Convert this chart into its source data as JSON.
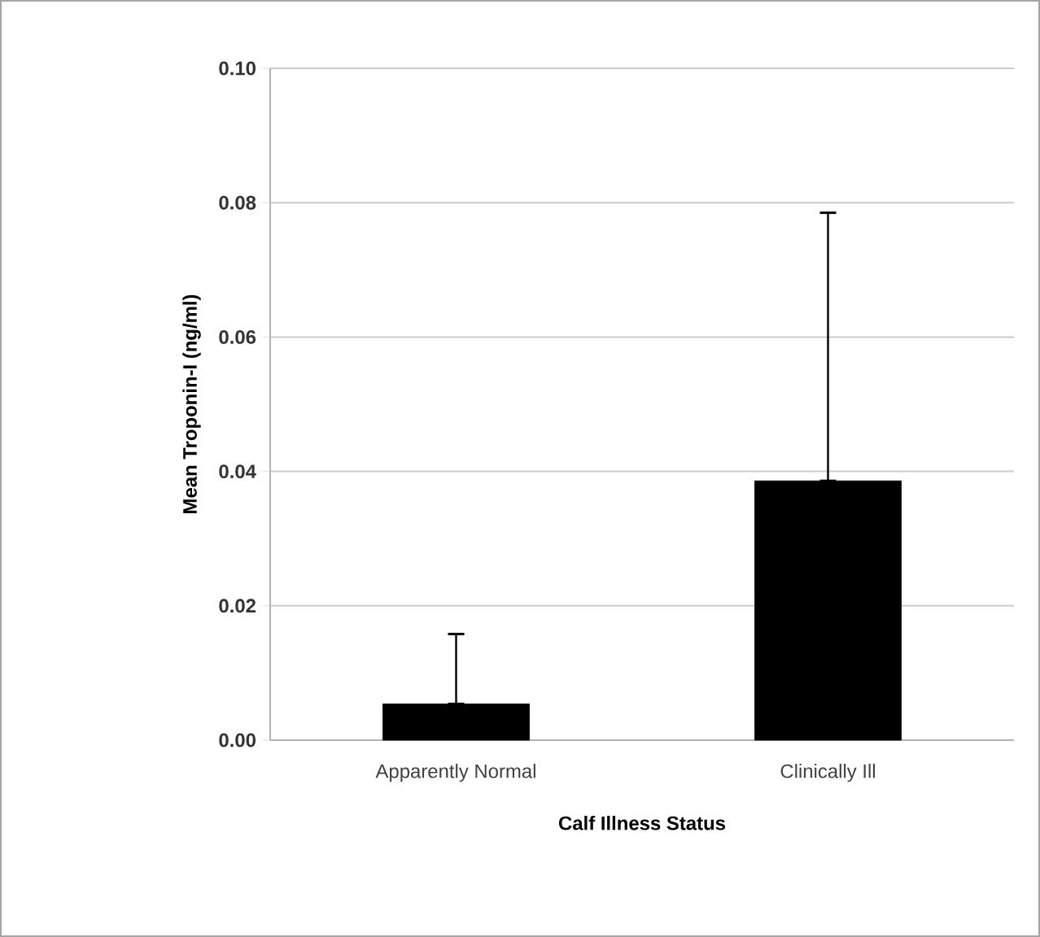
{
  "chart_data": {
    "type": "bar",
    "xlabel": "Calf Illness Status",
    "ylabel": "Mean Troponin-I (ng/ml)",
    "categories": [
      "Apparently Normal",
      "Clinically Ill"
    ],
    "values": [
      0.0054,
      0.0386
    ],
    "color": "#000000",
    "errors": [
      [
        0.0054,
        0.0158
      ],
      [
        0.0386,
        0.0785
      ]
    ],
    "ylim": [
      0,
      0.1
    ],
    "yticks": [
      {
        "value": 0,
        "label": "0.00"
      },
      {
        "value": 0.02,
        "label": "0.02"
      },
      {
        "value": 0.04,
        "label": "0.04"
      },
      {
        "value": 0.06,
        "label": "0.06"
      },
      {
        "value": 0.08,
        "label": "0.08"
      },
      {
        "value": 0.1,
        "label": "0.10"
      }
    ],
    "grid": "y"
  }
}
